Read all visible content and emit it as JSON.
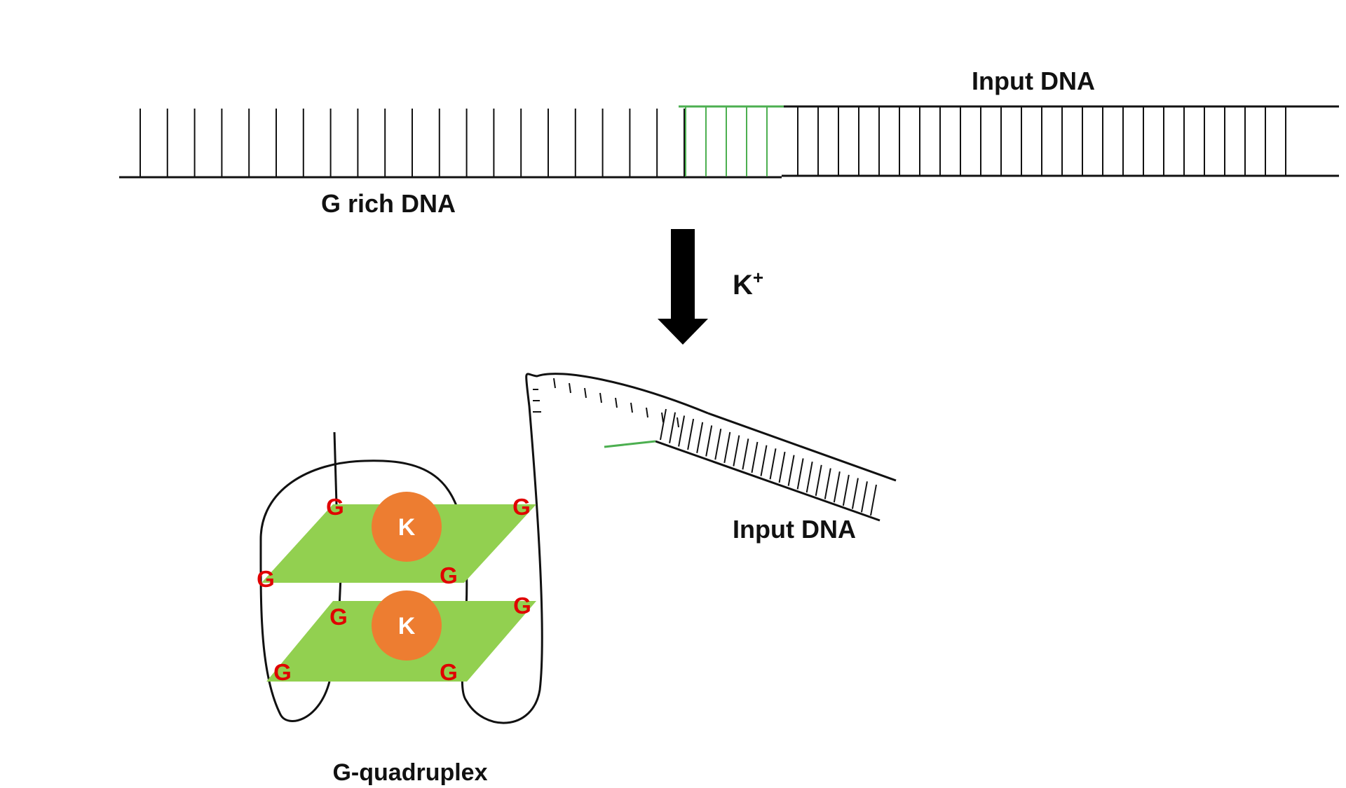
{
  "labels": {
    "input_dna_top": "Input DNA",
    "g_rich_dna": "G rich DNA",
    "ion": "K",
    "ion_charge": "+",
    "input_dna_bottom": "Input DNA",
    "g_quadruplex": "G-quadruplex"
  },
  "quartets": [
    {
      "guanines": [
        "G",
        "G",
        "G",
        "G"
      ],
      "ion": "K"
    },
    {
      "guanines": [
        "G",
        "G",
        "G",
        "G"
      ],
      "ion": "K"
    }
  ],
  "colors": {
    "strand": "#111111",
    "hybrid_region": "#4caf50",
    "quartet_plane": "#92d050",
    "guanine_text": "#e00000",
    "ion_fill": "#ed7d31",
    "ion_text": "#ffffff"
  }
}
